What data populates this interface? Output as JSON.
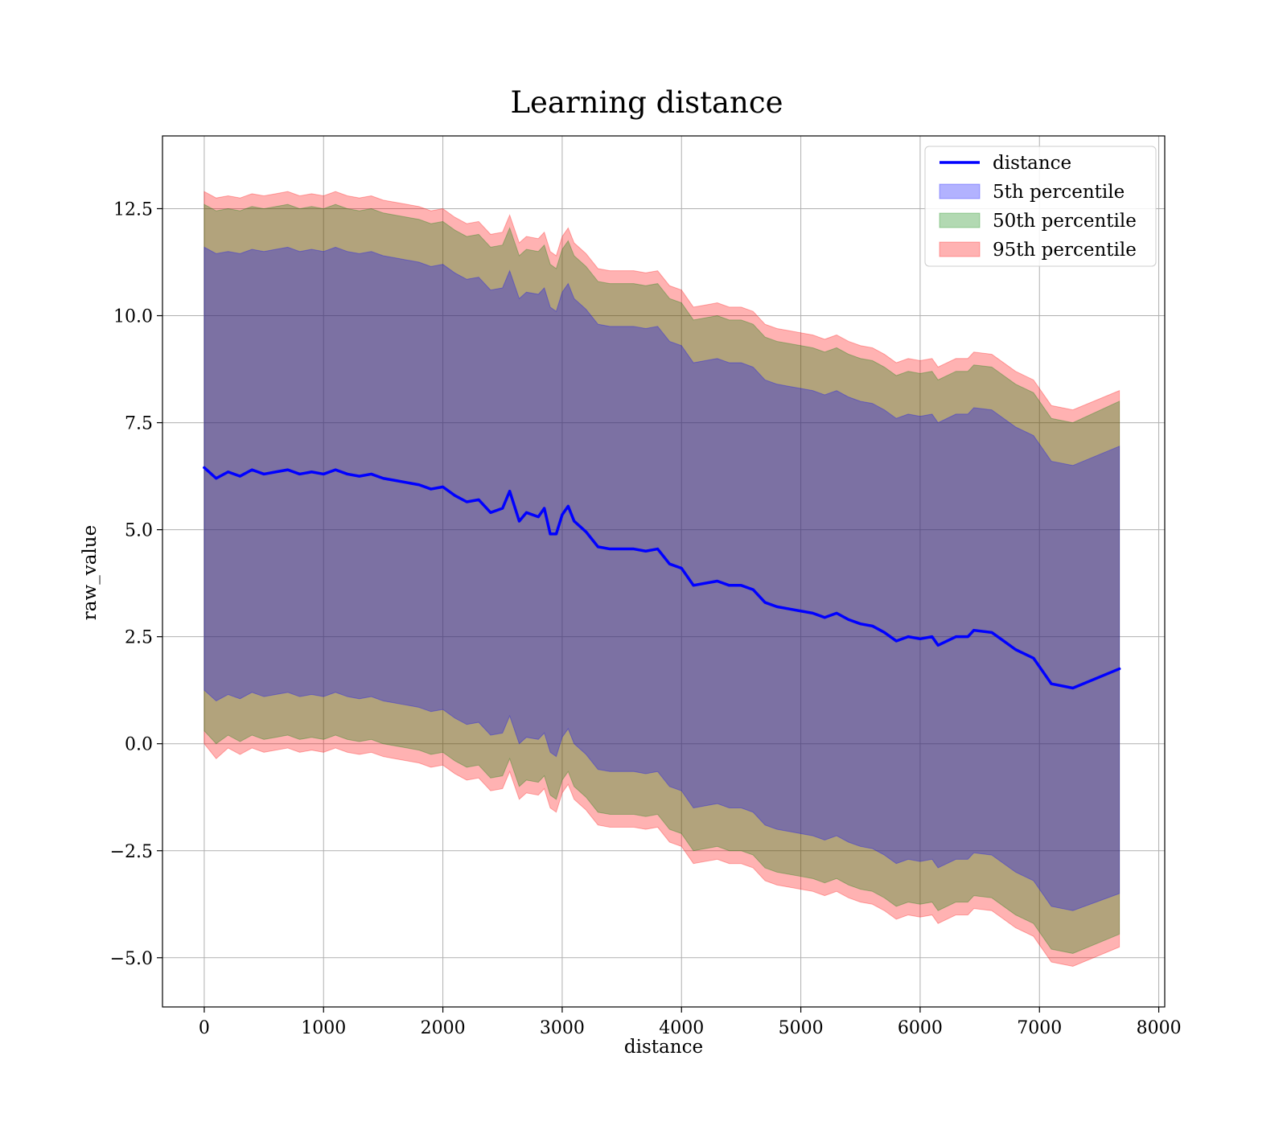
{
  "chart_data": {
    "type": "area",
    "title": "Learning distance",
    "xlabel": "distance",
    "ylabel": "raw_value",
    "xlim": [
      -350,
      8050
    ],
    "ylim": [
      -6.15,
      14.2
    ],
    "x_ticks": [
      0,
      1000,
      2000,
      3000,
      4000,
      5000,
      6000,
      7000,
      8000
    ],
    "x_tick_labels": [
      "0",
      "1000",
      "2000",
      "3000",
      "4000",
      "5000",
      "6000",
      "7000",
      "8000"
    ],
    "y_ticks": [
      -5.0,
      -2.5,
      0.0,
      2.5,
      5.0,
      7.5,
      10.0,
      12.5
    ],
    "y_tick_labels": [
      "−5.0",
      "−2.5",
      "0.0",
      "2.5",
      "5.0",
      "7.5",
      "10.0",
      "12.5"
    ],
    "grid": true,
    "legend_position": "top-right",
    "x": [
      0,
      100,
      200,
      300,
      400,
      500,
      600,
      700,
      800,
      900,
      1000,
      1100,
      1200,
      1300,
      1400,
      1500,
      1600,
      1700,
      1800,
      1900,
      2000,
      2100,
      2200,
      2300,
      2400,
      2500,
      2560,
      2640,
      2700,
      2800,
      2850,
      2900,
      2950,
      3000,
      3050,
      3100,
      3200,
      3300,
      3400,
      3500,
      3600,
      3700,
      3800,
      3900,
      4000,
      4100,
      4200,
      4300,
      4400,
      4500,
      4600,
      4700,
      4800,
      4900,
      5000,
      5100,
      5200,
      5300,
      5400,
      5500,
      5600,
      5700,
      5800,
      5900,
      6000,
      6100,
      6150,
      6300,
      6400,
      6450,
      6600,
      6700,
      6800,
      6950,
      7100,
      7280,
      7670
    ],
    "series": [
      {
        "name": "distance",
        "role": "line",
        "color": "#0000ff",
        "values": [
          6.45,
          6.2,
          6.35,
          6.25,
          6.4,
          6.3,
          6.35,
          6.4,
          6.3,
          6.35,
          6.3,
          6.4,
          6.3,
          6.25,
          6.3,
          6.2,
          6.15,
          6.1,
          6.05,
          5.95,
          6.0,
          5.8,
          5.65,
          5.7,
          5.4,
          5.5,
          5.9,
          5.2,
          5.4,
          5.3,
          5.5,
          4.9,
          4.9,
          5.35,
          5.55,
          5.2,
          4.95,
          4.6,
          4.55,
          4.55,
          4.55,
          4.5,
          4.55,
          4.2,
          4.1,
          3.7,
          3.75,
          3.8,
          3.7,
          3.7,
          3.6,
          3.3,
          3.2,
          3.15,
          3.1,
          3.05,
          2.95,
          3.05,
          2.9,
          2.8,
          2.75,
          2.6,
          2.4,
          2.5,
          2.45,
          2.5,
          2.3,
          2.5,
          2.5,
          2.65,
          2.6,
          2.4,
          2.2,
          2.0,
          1.4,
          1.3,
          1.75
        ]
      },
      {
        "name": "95th percentile",
        "role": "band",
        "color": "#ff0000",
        "upper": [
          12.9,
          12.75,
          12.8,
          12.75,
          12.85,
          12.8,
          12.85,
          12.9,
          12.8,
          12.85,
          12.8,
          12.9,
          12.8,
          12.75,
          12.8,
          12.7,
          12.65,
          12.6,
          12.55,
          12.45,
          12.5,
          12.3,
          12.15,
          12.2,
          11.9,
          11.95,
          12.35,
          11.7,
          11.85,
          11.8,
          11.95,
          11.5,
          11.4,
          11.85,
          12.05,
          11.7,
          11.45,
          11.1,
          11.05,
          11.05,
          11.05,
          11.0,
          11.05,
          10.7,
          10.6,
          10.2,
          10.25,
          10.3,
          10.2,
          10.2,
          10.1,
          9.8,
          9.7,
          9.65,
          9.6,
          9.55,
          9.45,
          9.55,
          9.4,
          9.3,
          9.25,
          9.1,
          8.9,
          9.0,
          8.95,
          9.0,
          8.8,
          9.0,
          9.0,
          9.15,
          9.1,
          8.9,
          8.7,
          8.5,
          7.9,
          7.8,
          8.25
        ],
        "lower": [
          0.0,
          -0.35,
          -0.1,
          -0.25,
          -0.1,
          -0.2,
          -0.15,
          -0.1,
          -0.2,
          -0.15,
          -0.2,
          -0.1,
          -0.2,
          -0.25,
          -0.2,
          -0.3,
          -0.35,
          -0.4,
          -0.45,
          -0.55,
          -0.5,
          -0.7,
          -0.85,
          -0.8,
          -1.1,
          -1.05,
          -0.65,
          -1.3,
          -1.15,
          -1.2,
          -1.05,
          -1.5,
          -1.6,
          -1.15,
          -0.95,
          -1.3,
          -1.55,
          -1.9,
          -1.95,
          -1.95,
          -1.95,
          -2.0,
          -1.95,
          -2.3,
          -2.4,
          -2.8,
          -2.75,
          -2.7,
          -2.8,
          -2.8,
          -2.9,
          -3.2,
          -3.3,
          -3.35,
          -3.4,
          -3.45,
          -3.55,
          -3.45,
          -3.6,
          -3.7,
          -3.75,
          -3.9,
          -4.1,
          -4.0,
          -4.05,
          -4.0,
          -4.2,
          -4.0,
          -4.0,
          -3.85,
          -3.9,
          -4.1,
          -4.3,
          -4.5,
          -5.1,
          -5.2,
          -4.75
        ]
      },
      {
        "name": "50th percentile",
        "role": "band",
        "color": "#008000",
        "upper": [
          12.6,
          12.45,
          12.5,
          12.45,
          12.55,
          12.5,
          12.55,
          12.6,
          12.5,
          12.55,
          12.5,
          12.6,
          12.5,
          12.45,
          12.5,
          12.4,
          12.35,
          12.3,
          12.25,
          12.15,
          12.2,
          12.0,
          11.85,
          11.9,
          11.6,
          11.65,
          12.05,
          11.4,
          11.55,
          11.5,
          11.65,
          11.2,
          11.1,
          11.55,
          11.75,
          11.4,
          11.15,
          10.8,
          10.75,
          10.75,
          10.75,
          10.7,
          10.75,
          10.4,
          10.3,
          9.9,
          9.95,
          10.0,
          9.9,
          9.9,
          9.8,
          9.5,
          9.4,
          9.35,
          9.3,
          9.25,
          9.15,
          9.25,
          9.1,
          9.0,
          8.95,
          8.8,
          8.6,
          8.7,
          8.65,
          8.7,
          8.5,
          8.7,
          8.7,
          8.85,
          8.8,
          8.6,
          8.4,
          8.2,
          7.6,
          7.5,
          8.0
        ],
        "lower": [
          0.3,
          0.0,
          0.2,
          0.05,
          0.2,
          0.1,
          0.15,
          0.2,
          0.1,
          0.15,
          0.1,
          0.2,
          0.1,
          0.05,
          0.1,
          0.0,
          -0.05,
          -0.1,
          -0.15,
          -0.25,
          -0.2,
          -0.4,
          -0.55,
          -0.5,
          -0.8,
          -0.75,
          -0.35,
          -1.0,
          -0.85,
          -0.9,
          -0.75,
          -1.2,
          -1.3,
          -0.85,
          -0.65,
          -1.0,
          -1.25,
          -1.6,
          -1.65,
          -1.65,
          -1.65,
          -1.7,
          -1.65,
          -2.0,
          -2.1,
          -2.5,
          -2.45,
          -2.4,
          -2.5,
          -2.5,
          -2.6,
          -2.9,
          -3.0,
          -3.05,
          -3.1,
          -3.15,
          -3.25,
          -3.15,
          -3.3,
          -3.4,
          -3.45,
          -3.6,
          -3.8,
          -3.7,
          -3.75,
          -3.7,
          -3.9,
          -3.7,
          -3.7,
          -3.55,
          -3.6,
          -3.8,
          -4.0,
          -4.2,
          -4.8,
          -4.9,
          -4.45
        ]
      },
      {
        "name": "5th percentile",
        "role": "band",
        "color": "#0000ff",
        "upper": [
          11.6,
          11.45,
          11.5,
          11.45,
          11.55,
          11.5,
          11.55,
          11.6,
          11.5,
          11.55,
          11.5,
          11.6,
          11.5,
          11.45,
          11.5,
          11.4,
          11.35,
          11.3,
          11.25,
          11.15,
          11.2,
          11.0,
          10.85,
          10.9,
          10.6,
          10.65,
          11.05,
          10.4,
          10.55,
          10.5,
          10.65,
          10.2,
          10.1,
          10.55,
          10.75,
          10.4,
          10.15,
          9.8,
          9.75,
          9.75,
          9.75,
          9.7,
          9.75,
          9.4,
          9.3,
          8.9,
          8.95,
          9.0,
          8.9,
          8.9,
          8.8,
          8.5,
          8.4,
          8.35,
          8.3,
          8.25,
          8.15,
          8.25,
          8.1,
          8.0,
          7.95,
          7.8,
          7.6,
          7.7,
          7.65,
          7.7,
          7.5,
          7.7,
          7.7,
          7.85,
          7.8,
          7.6,
          7.4,
          7.2,
          6.6,
          6.5,
          6.95
        ],
        "lower": [
          1.25,
          1.0,
          1.15,
          1.05,
          1.2,
          1.1,
          1.15,
          1.2,
          1.1,
          1.15,
          1.1,
          1.2,
          1.1,
          1.05,
          1.1,
          1.0,
          0.95,
          0.9,
          0.85,
          0.75,
          0.8,
          0.6,
          0.45,
          0.5,
          0.2,
          0.25,
          0.65,
          0.0,
          0.15,
          0.1,
          0.25,
          -0.2,
          -0.3,
          0.15,
          0.35,
          0.0,
          -0.25,
          -0.6,
          -0.65,
          -0.65,
          -0.65,
          -0.7,
          -0.65,
          -1.0,
          -1.1,
          -1.5,
          -1.45,
          -1.4,
          -1.5,
          -1.5,
          -1.6,
          -1.9,
          -2.0,
          -2.05,
          -2.1,
          -2.15,
          -2.25,
          -2.15,
          -2.3,
          -2.4,
          -2.45,
          -2.6,
          -2.8,
          -2.7,
          -2.75,
          -2.7,
          -2.9,
          -2.7,
          -2.7,
          -2.55,
          -2.6,
          -2.8,
          -3.0,
          -3.2,
          -3.8,
          -3.9,
          -3.5
        ]
      }
    ],
    "legend": [
      {
        "label": "distance",
        "kind": "line",
        "color": "#0000ff"
      },
      {
        "label": "5th percentile",
        "kind": "patch",
        "color": "#0000ff"
      },
      {
        "label": "50th percentile",
        "kind": "patch",
        "color": "#008000"
      },
      {
        "label": "95th percentile",
        "kind": "patch",
        "color": "#ff0000"
      }
    ]
  }
}
